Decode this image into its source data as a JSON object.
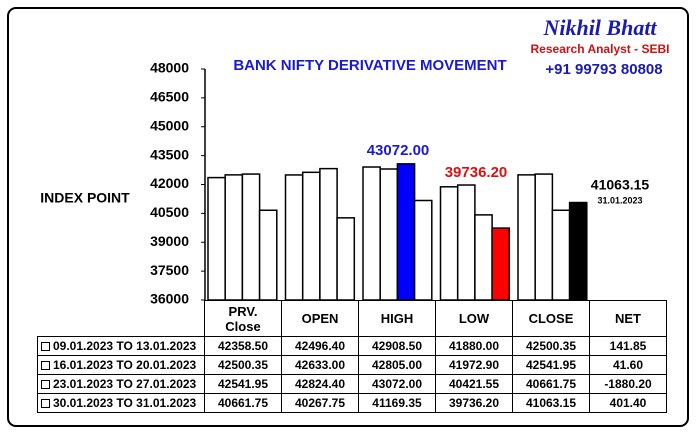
{
  "chart_data": {
    "type": "bar",
    "title": "BANK NIFTY DERIVATIVE MOVEMENT",
    "ylabel": "INDEX POINT",
    "brand": {
      "name": "Nikhil Bhatt",
      "role": "Research Analyst - SEBI",
      "phone": "+91 99793 80808"
    },
    "categories": [
      "PRV. Close",
      "OPEN",
      "HIGH",
      "LOW",
      "CLOSE"
    ],
    "ylim": [
      36000,
      48000
    ],
    "yticks": [
      36000,
      37500,
      39000,
      40500,
      42000,
      43500,
      45000,
      46500,
      48000
    ],
    "series": [
      {
        "name": "09.01.2023 TO 13.01.2023",
        "colors": [
          "#ffffff",
          "#ffffff",
          "#ffffff",
          "#ffffff",
          "#ffffff"
        ],
        "values": [
          42358.5,
          42496.4,
          42908.5,
          41880,
          42500.35
        ],
        "value_labels": [
          "42358.50",
          "42496.40",
          "42908.50",
          "41880.00",
          "42500.35"
        ]
      },
      {
        "name": "16.01.2023 TO 20.01.2023",
        "colors": [
          "#ffffff",
          "#ffffff",
          "#ffffff",
          "#ffffff",
          "#ffffff"
        ],
        "values": [
          42500.35,
          42633,
          42805,
          41972.9,
          42541.95
        ],
        "value_labels": [
          "42500.35",
          "42633.00",
          "42805.00",
          "41972.90",
          "42541.95"
        ]
      },
      {
        "name": "23.01.2023 TO 27.01.2023",
        "colors": [
          "#ffffff",
          "#ffffff",
          "#0000ff",
          "#ffffff",
          "#ffffff"
        ],
        "values": [
          42541.95,
          42824.4,
          43072,
          40421.55,
          40661.75
        ],
        "value_labels": [
          "42541.95",
          "42824.40",
          "43072.00",
          "40421.55",
          "40661.75"
        ]
      },
      {
        "name": "30.01.2023 TO 31.01.2023",
        "colors": [
          "#ffffff",
          "#ffffff",
          "#ffffff",
          "#ff0000",
          "#000000"
        ],
        "values": [
          40661.75,
          40267.75,
          41169.35,
          39736.2,
          41063.15
        ],
        "value_labels": [
          "40661.75",
          "40267.75",
          "41169.35",
          "39736.20",
          "41063.15"
        ]
      }
    ],
    "net": {
      "label": "NET",
      "values": [
        141.85,
        41.6,
        -1880.2,
        401.4
      ],
      "value_labels": [
        "141.85",
        "41.60",
        "-1880.20",
        "401.40"
      ]
    },
    "annotations": [
      {
        "text": "43072.00",
        "color": "#1a1ad6"
      },
      {
        "text": "39736.20",
        "color": "#e01010"
      },
      {
        "text": "41063.15",
        "color": "#000000"
      },
      {
        "text": "31.01.2023",
        "color": "#000000"
      }
    ]
  }
}
